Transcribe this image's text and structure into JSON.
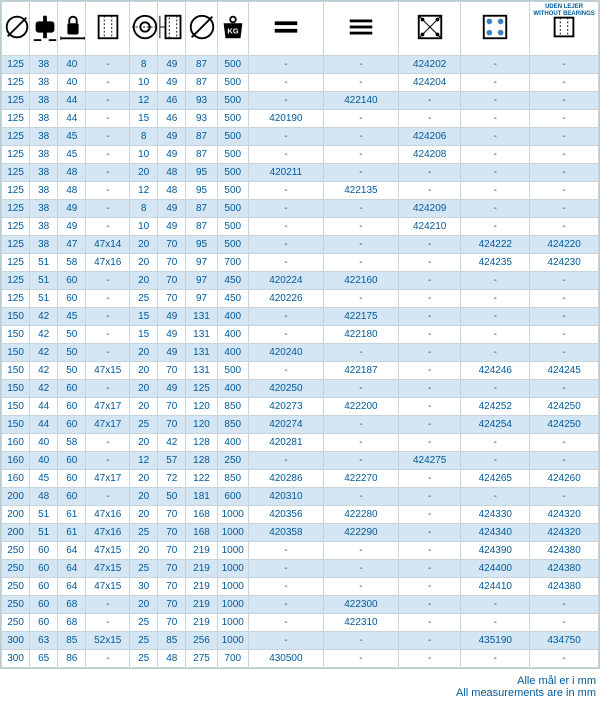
{
  "table": {
    "stripe_color": "#d4e6f4",
    "border_color": "#c8d4db",
    "text_color": "#005a9b",
    "header_text_13": "UDEN LEJER\nWITHOUT BEARINGS",
    "columns": [
      {
        "num": 0,
        "icon": "diameter"
      },
      {
        "num": 1,
        "icon": "hub-double"
      },
      {
        "num": 2,
        "icon": "hub-lock"
      },
      {
        "num": 3,
        "icon": "profile-u"
      },
      {
        "num": 4,
        "icon": "ring"
      },
      {
        "num": 5,
        "icon": "profile-side"
      },
      {
        "num": 6,
        "icon": "circle-diam"
      },
      {
        "num": 7,
        "icon": "weight-kg"
      },
      {
        "num": 8,
        "icon": "lines-2"
      },
      {
        "num": 9,
        "icon": "lines-3"
      },
      {
        "num": 10,
        "icon": "plate-x"
      },
      {
        "num": 11,
        "icon": "plate-4dot"
      },
      {
        "num": 12,
        "icon": "profile-blank",
        "label": "UDEN LEJER WITHOUT BEARINGS"
      }
    ],
    "rows": [
      [
        "125",
        "38",
        "40",
        "-",
        "8",
        "49",
        "87",
        "500",
        "-",
        "-",
        "424202",
        "-",
        "-"
      ],
      [
        "125",
        "38",
        "40",
        "-",
        "10",
        "49",
        "87",
        "500",
        "-",
        "-",
        "424204",
        "-",
        "-"
      ],
      [
        "125",
        "38",
        "44",
        "-",
        "12",
        "46",
        "93",
        "500",
        "-",
        "422140",
        "-",
        "-",
        "-"
      ],
      [
        "125",
        "38",
        "44",
        "-",
        "15",
        "46",
        "93",
        "500",
        "420190",
        "-",
        "-",
        "-",
        "-"
      ],
      [
        "125",
        "38",
        "45",
        "-",
        "8",
        "49",
        "87",
        "500",
        "-",
        "-",
        "424206",
        "-",
        "-"
      ],
      [
        "125",
        "38",
        "45",
        "-",
        "10",
        "49",
        "87",
        "500",
        "-",
        "-",
        "424208",
        "-",
        "-"
      ],
      [
        "125",
        "38",
        "48",
        "-",
        "20",
        "48",
        "95",
        "500",
        "420211",
        "-",
        "-",
        "-",
        "-"
      ],
      [
        "125",
        "38",
        "48",
        "-",
        "12",
        "48",
        "95",
        "500",
        "-",
        "422135",
        "-",
        "-",
        "-"
      ],
      [
        "125",
        "38",
        "49",
        "-",
        "8",
        "49",
        "87",
        "500",
        "-",
        "-",
        "424209",
        "-",
        "-"
      ],
      [
        "125",
        "38",
        "49",
        "-",
        "10",
        "49",
        "87",
        "500",
        "-",
        "-",
        "424210",
        "-",
        "-"
      ],
      [
        "125",
        "38",
        "47",
        "47x14",
        "20",
        "70",
        "95",
        "500",
        "-",
        "-",
        "-",
        "424222",
        "424220"
      ],
      [
        "125",
        "51",
        "58",
        "47x16",
        "20",
        "70",
        "97",
        "700",
        "-",
        "-",
        "-",
        "424235",
        "424230"
      ],
      [
        "125",
        "51",
        "60",
        "-",
        "20",
        "70",
        "97",
        "450",
        "420224",
        "422160",
        "-",
        "-",
        "-"
      ],
      [
        "125",
        "51",
        "60",
        "-",
        "25",
        "70",
        "97",
        "450",
        "420226",
        "-",
        "-",
        "-",
        "-"
      ],
      [
        "150",
        "42",
        "45",
        "-",
        "15",
        "49",
        "131",
        "400",
        "-",
        "422175",
        "-",
        "-",
        "-"
      ],
      [
        "150",
        "42",
        "50",
        "-",
        "15",
        "49",
        "131",
        "400",
        "-",
        "422180",
        "-",
        "-",
        "-"
      ],
      [
        "150",
        "42",
        "50",
        "-",
        "20",
        "49",
        "131",
        "400",
        "420240",
        "-",
        "-",
        "-",
        "-"
      ],
      [
        "150",
        "42",
        "50",
        "47x15",
        "20",
        "70",
        "131",
        "500",
        "-",
        "422187",
        "-",
        "424246",
        "424245"
      ],
      [
        "150",
        "42",
        "60",
        "-",
        "20",
        "49",
        "125",
        "400",
        "420250",
        "-",
        "-",
        "-",
        "-"
      ],
      [
        "150",
        "44",
        "60",
        "47x17",
        "20",
        "70",
        "120",
        "850",
        "420273",
        "422200",
        "-",
        "424252",
        "424250"
      ],
      [
        "150",
        "44",
        "60",
        "47x17",
        "25",
        "70",
        "120",
        "850",
        "420274",
        "-",
        "-",
        "424254",
        "424250"
      ],
      [
        "160",
        "40",
        "58",
        "-",
        "20",
        "42",
        "128",
        "400",
        "420281",
        "-",
        "-",
        "-",
        "-"
      ],
      [
        "160",
        "40",
        "60",
        "-",
        "12",
        "57",
        "128",
        "250",
        "-",
        "-",
        "424275",
        "-",
        "-"
      ],
      [
        "160",
        "45",
        "60",
        "47x17",
        "20",
        "72",
        "122",
        "850",
        "420286",
        "422270",
        "-",
        "424265",
        "424260"
      ],
      [
        "200",
        "48",
        "60",
        "-",
        "20",
        "50",
        "181",
        "600",
        "420310",
        "-",
        "-",
        "-",
        "-"
      ],
      [
        "200",
        "51",
        "61",
        "47x16",
        "20",
        "70",
        "168",
        "1000",
        "420356",
        "422280",
        "-",
        "424330",
        "424320"
      ],
      [
        "200",
        "51",
        "61",
        "47x16",
        "25",
        "70",
        "168",
        "1000",
        "420358",
        "422290",
        "-",
        "424340",
        "424320"
      ],
      [
        "250",
        "60",
        "64",
        "47x15",
        "20",
        "70",
        "219",
        "1000",
        "-",
        "-",
        "-",
        "424390",
        "424380"
      ],
      [
        "250",
        "60",
        "64",
        "47x15",
        "25",
        "70",
        "219",
        "1000",
        "-",
        "-",
        "-",
        "424400",
        "424380"
      ],
      [
        "250",
        "60",
        "64",
        "47x15",
        "30",
        "70",
        "219",
        "1000",
        "-",
        "-",
        "-",
        "424410",
        "424380"
      ],
      [
        "250",
        "60",
        "68",
        "-",
        "20",
        "70",
        "219",
        "1000",
        "-",
        "422300",
        "-",
        "-",
        "-"
      ],
      [
        "250",
        "60",
        "68",
        "-",
        "25",
        "70",
        "219",
        "1000",
        "-",
        "422310",
        "-",
        "-",
        "-"
      ],
      [
        "300",
        "63",
        "85",
        "52x15",
        "25",
        "85",
        "256",
        "1000",
        "-",
        "-",
        "-",
        "435190",
        "434750"
      ],
      [
        "300",
        "65",
        "86",
        "-",
        "25",
        "48",
        "275",
        "700",
        "430500",
        "-",
        "-",
        "-",
        "-"
      ]
    ]
  },
  "footer": {
    "line1": "Alle mål er i mm",
    "line2": "All measurements are in mm"
  }
}
